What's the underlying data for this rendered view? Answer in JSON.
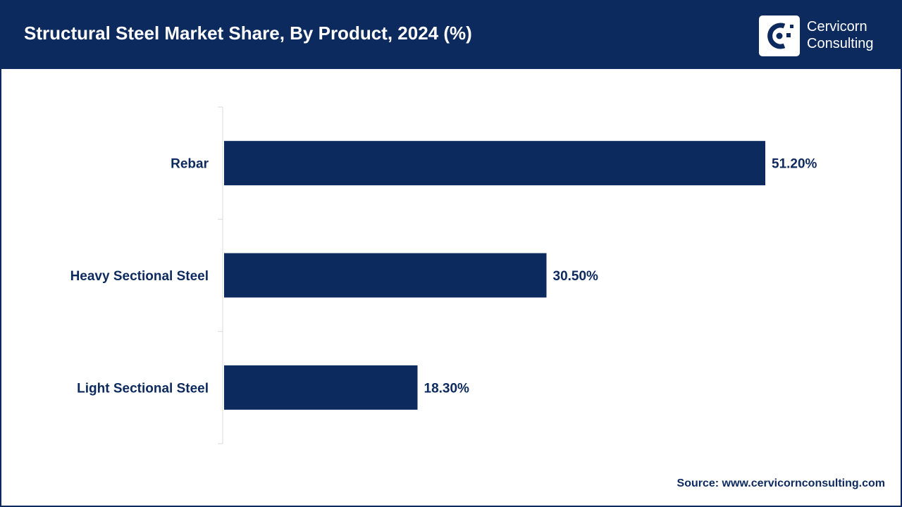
{
  "header": {
    "title": "Structural Steel Market Share, By Product, 2024 (%)"
  },
  "logo": {
    "line1": "Cervicorn",
    "line2": "Consulting"
  },
  "source": "Source: www.cervicornconsulting.com",
  "colors": {
    "brand": "#0d2a5e",
    "bar": "#0d2a5e",
    "axis": "#d9d9d9",
    "label_text": "#0d2a5e"
  },
  "chart_data": {
    "type": "bar",
    "orientation": "horizontal",
    "categories": [
      "Rebar",
      "Heavy Sectional Steel",
      "Light Sectional Steel"
    ],
    "values": [
      51.2,
      30.5,
      18.3
    ],
    "data_labels": [
      "51.20%",
      "30.50%",
      "18.30%"
    ],
    "title": "Structural Steel Market Share, By Product, 2024 (%)",
    "xlabel": "",
    "ylabel": "",
    "grid": false,
    "legend": "none"
  }
}
